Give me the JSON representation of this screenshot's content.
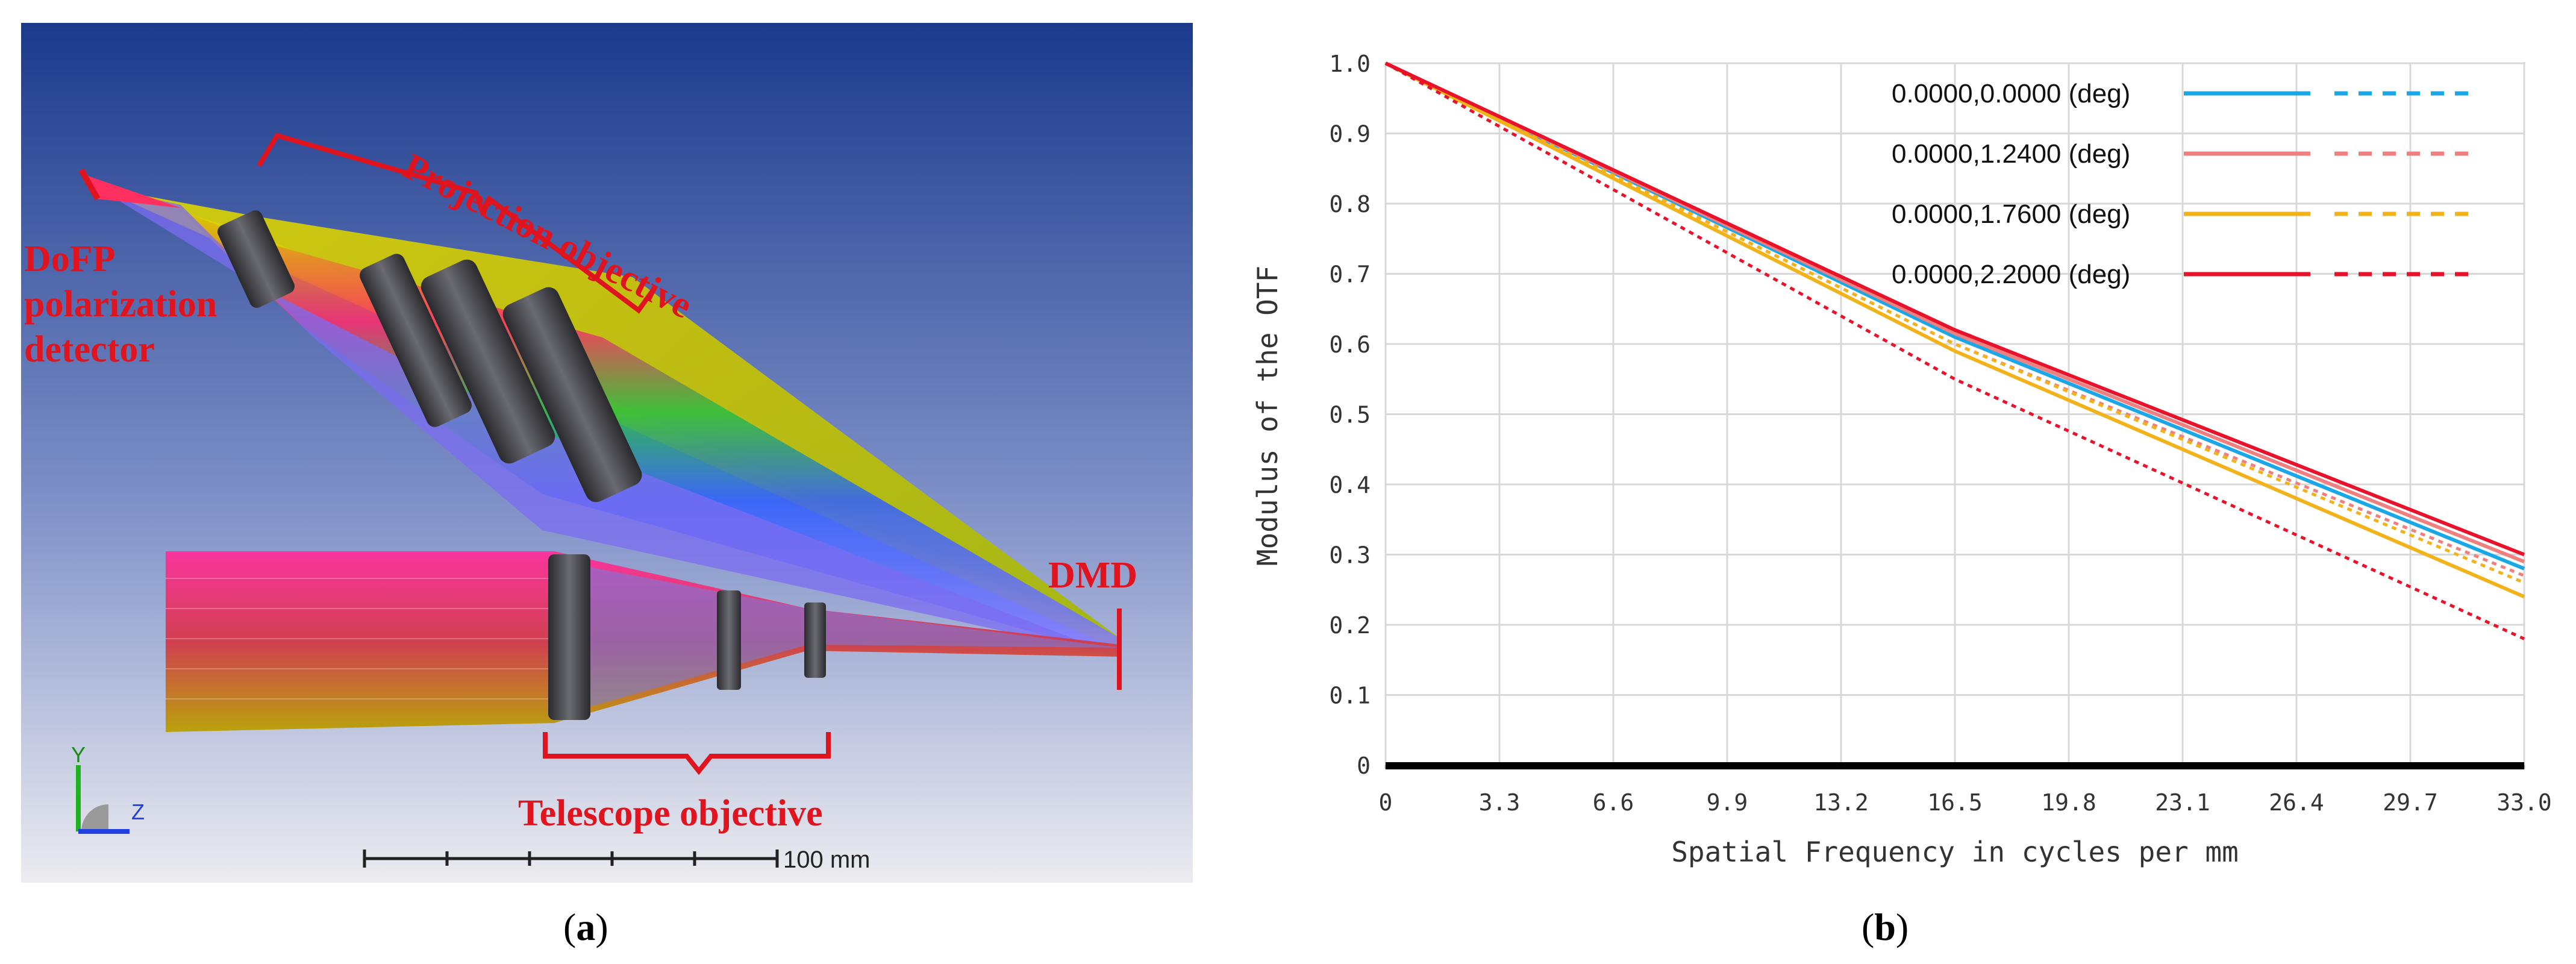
{
  "panel_a": {
    "caption_letter": "a",
    "labels": {
      "projection": "Projection objective",
      "dofp": "DoFP",
      "polarization": "polarization",
      "detector": "detector",
      "dmd": "DMD",
      "telescope": "Telescope objective"
    },
    "axis_y": "Y",
    "axis_z": "Z",
    "scale_label": "100 mm",
    "colors": {
      "bg_top": "#1b3a8c",
      "bg_bottom": "#e6e6ea",
      "annotation": "#e0141e"
    }
  },
  "panel_b": {
    "caption_letter": "b"
  },
  "chart_data": {
    "type": "line",
    "title": "",
    "xlabel": "Spatial Frequency in cycles per mm",
    "ylabel": "Modulus of the OTF",
    "xlim": [
      0,
      33
    ],
    "ylim": [
      0,
      1
    ],
    "xticks": [
      "0",
      "3.3",
      "6.6",
      "9.9",
      "13.2",
      "16.5",
      "19.8",
      "23.1",
      "26.4",
      "29.7",
      "33.0"
    ],
    "yticks": [
      "0",
      "0.1",
      "0.2",
      "0.3",
      "0.4",
      "0.5",
      "0.6",
      "0.7",
      "0.8",
      "0.9",
      "1.0"
    ],
    "grid": true,
    "legend_position": "top-right",
    "series": [
      {
        "name": "0.0000,0.0000 (deg)",
        "color": "#1aa7e8",
        "style": "solid",
        "points": [
          [
            0,
            1.0
          ],
          [
            16.5,
            0.61
          ],
          [
            33,
            0.28
          ]
        ]
      },
      {
        "name": "",
        "color": "#1aa7e8",
        "style": "dashed",
        "points": [
          [
            0,
            1.0
          ],
          [
            16.5,
            0.61
          ],
          [
            33,
            0.28
          ]
        ]
      },
      {
        "name": "0.0000,1.2400 (deg)",
        "color": "#f08080",
        "style": "solid",
        "points": [
          [
            0,
            1.0
          ],
          [
            16.5,
            0.615
          ],
          [
            33,
            0.29
          ]
        ]
      },
      {
        "name": "",
        "color": "#f08080",
        "style": "dashed",
        "points": [
          [
            0,
            1.0
          ],
          [
            16.5,
            0.6
          ],
          [
            33,
            0.27
          ]
        ]
      },
      {
        "name": "0.0000,1.7600 (deg)",
        "color": "#f2b21a",
        "style": "solid",
        "points": [
          [
            0,
            1.0
          ],
          [
            16.5,
            0.59
          ],
          [
            33,
            0.24
          ]
        ]
      },
      {
        "name": "",
        "color": "#f2b21a",
        "style": "dashed",
        "points": [
          [
            0,
            1.0
          ],
          [
            16.5,
            0.6
          ],
          [
            33,
            0.26
          ]
        ]
      },
      {
        "name": "0.0000,2.2000 (deg)",
        "color": "#e8132a",
        "style": "solid",
        "points": [
          [
            0,
            1.0
          ],
          [
            16.5,
            0.62
          ],
          [
            33,
            0.3
          ]
        ]
      },
      {
        "name": "",
        "color": "#e8132a",
        "style": "dashed",
        "points": [
          [
            0,
            1.0
          ],
          [
            16.5,
            0.55
          ],
          [
            33,
            0.18
          ]
        ]
      }
    ]
  }
}
